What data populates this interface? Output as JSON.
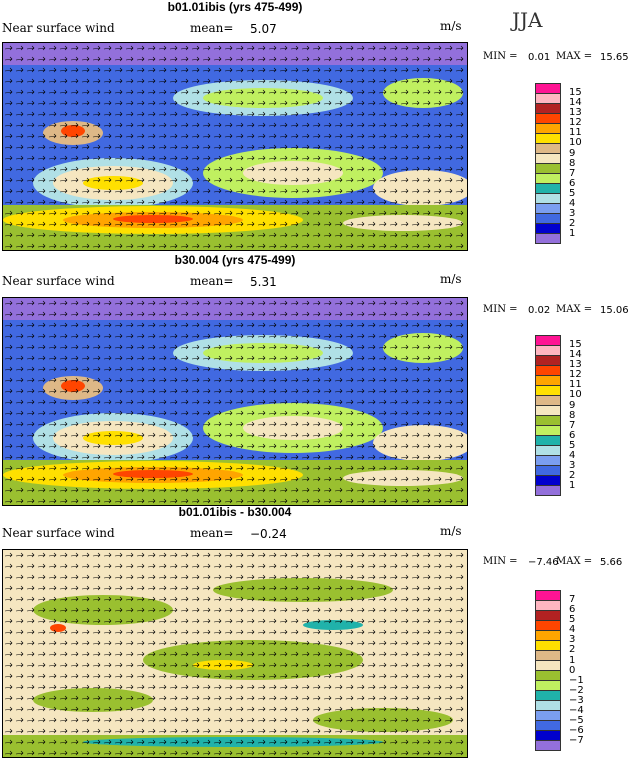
{
  "season": "JJA",
  "colors": [
    "#9370db",
    "#0000cd",
    "#4169e1",
    "#7b9ef0",
    "#b0e0e6",
    "#20b2aa",
    "#c0f060",
    "#9ac030",
    "#f5e6c0",
    "#deb887",
    "#ffe000",
    "#ffa500",
    "#ff4500",
    "#b22222",
    "#ffb6c1",
    "#ff1493"
  ],
  "panels": [
    {
      "title": "b01.01ibis (yrs 475-499)",
      "variable": "Near surface wind",
      "mean_label": "mean=",
      "mean": "5.07",
      "units": "m/s",
      "min_label": "MIN =",
      "min": "0.01",
      "max_label": "MAX =",
      "max": "15.65",
      "levels": [
        "15",
        "14",
        "13",
        "12",
        "11",
        "10",
        "9",
        "8",
        "7",
        "6",
        "5",
        "4",
        "3",
        "2",
        "1"
      ]
    },
    {
      "title": "b30.004 (yrs 475-499)",
      "variable": "Near surface wind",
      "mean_label": "mean=",
      "mean": "5.31",
      "units": "m/s",
      "min_label": "MIN =",
      "min": "0.02",
      "max_label": "MAX =",
      "max": "15.06",
      "levels": [
        "15",
        "14",
        "13",
        "12",
        "11",
        "10",
        "9",
        "8",
        "7",
        "6",
        "5",
        "4",
        "3",
        "2",
        "1"
      ]
    },
    {
      "title": "b01.01ibis - b30.004",
      "variable": "Near surface wind",
      "mean_label": "mean=",
      "mean": "−0.24",
      "units": "m/s",
      "min_label": "MIN =",
      "min": "−7.46",
      "max_label": "MAX =",
      "max": "5.66",
      "levels": [
        "7",
        "6",
        "5",
        "4",
        "3",
        "2",
        "1",
        "0",
        "−1",
        "−2",
        "−3",
        "−4",
        "−5",
        "−6",
        "−7"
      ]
    }
  ]
}
